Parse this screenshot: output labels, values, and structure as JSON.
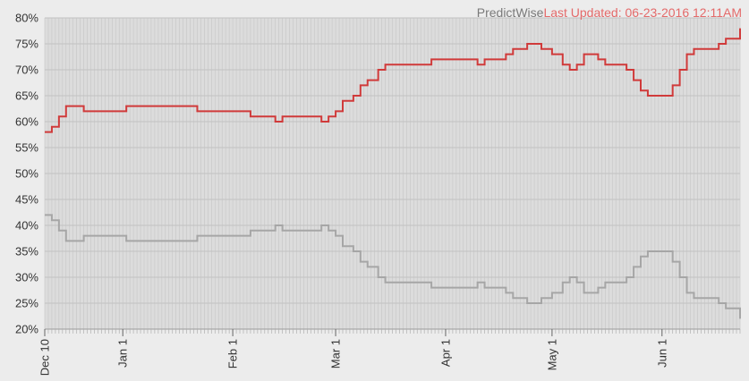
{
  "header": {
    "brand": "PredictWise",
    "updated": "Last Updated: 06-23-2016 12:11AM"
  },
  "colors": {
    "background": "#ececec",
    "plot_background": "#dcdcdc",
    "series_red": "#d03a3a",
    "series_gray": "#a6a6a6"
  },
  "chart_data": {
    "type": "line",
    "title": "",
    "xlabel": "",
    "ylabel": "",
    "x_range": [
      "2015-12-10",
      "2016-06-23"
    ],
    "ylim": [
      20,
      80
    ],
    "y_ticks": [
      20,
      25,
      30,
      35,
      40,
      45,
      50,
      55,
      60,
      65,
      70,
      75,
      80
    ],
    "y_tick_labels": [
      "20%",
      "25%",
      "30%",
      "35%",
      "40%",
      "45%",
      "50%",
      "55%",
      "60%",
      "65%",
      "70%",
      "75%",
      "80%"
    ],
    "x_ticks": [
      "2015-12-10",
      "2016-01-01",
      "2016-02-01",
      "2016-03-01",
      "2016-04-01",
      "2016-05-01",
      "2016-06-01"
    ],
    "x_tick_labels": [
      "Dec 10",
      "Jan 1",
      "Feb 1",
      "Mar 1",
      "Apr 1",
      "May 1",
      "Jun 1"
    ],
    "grid": true,
    "legend": "none",
    "series": [
      {
        "points": [
          [
            "2015-12-10",
            58
          ],
          [
            "2015-12-12",
            59
          ],
          [
            "2015-12-14",
            61
          ],
          [
            "2015-12-16",
            63
          ],
          [
            "2015-12-20",
            63
          ],
          [
            "2015-12-21",
            62
          ],
          [
            "2015-12-25",
            62
          ],
          [
            "2015-12-31",
            62
          ],
          [
            "2016-01-02",
            63
          ],
          [
            "2016-01-10",
            63
          ],
          [
            "2016-01-14",
            63
          ],
          [
            "2016-01-18",
            63
          ],
          [
            "2016-01-20",
            63
          ],
          [
            "2016-01-22",
            62
          ],
          [
            "2016-01-28",
            62
          ],
          [
            "2016-02-02",
            62
          ],
          [
            "2016-02-06",
            61
          ],
          [
            "2016-02-10",
            61
          ],
          [
            "2016-02-13",
            60
          ],
          [
            "2016-02-15",
            61
          ],
          [
            "2016-02-22",
            61
          ],
          [
            "2016-02-26",
            60
          ],
          [
            "2016-02-28",
            61
          ],
          [
            "2016-03-01",
            62
          ],
          [
            "2016-03-03",
            64
          ],
          [
            "2016-03-06",
            65
          ],
          [
            "2016-03-08",
            67
          ],
          [
            "2016-03-10",
            68
          ],
          [
            "2016-03-13",
            70
          ],
          [
            "2016-03-15",
            71
          ],
          [
            "2016-03-18",
            71
          ],
          [
            "2016-03-25",
            71
          ],
          [
            "2016-03-28",
            72
          ],
          [
            "2016-04-05",
            72
          ],
          [
            "2016-04-10",
            71
          ],
          [
            "2016-04-12",
            72
          ],
          [
            "2016-04-16",
            72
          ],
          [
            "2016-04-18",
            73
          ],
          [
            "2016-04-20",
            74
          ],
          [
            "2016-04-24",
            75
          ],
          [
            "2016-04-28",
            74
          ],
          [
            "2016-05-01",
            73
          ],
          [
            "2016-05-04",
            71
          ],
          [
            "2016-05-06",
            70
          ],
          [
            "2016-05-08",
            71
          ],
          [
            "2016-05-10",
            73
          ],
          [
            "2016-05-14",
            72
          ],
          [
            "2016-05-16",
            71
          ],
          [
            "2016-05-22",
            70
          ],
          [
            "2016-05-24",
            68
          ],
          [
            "2016-05-26",
            66
          ],
          [
            "2016-05-28",
            65
          ],
          [
            "2016-06-02",
            65
          ],
          [
            "2016-06-04",
            67
          ],
          [
            "2016-06-06",
            70
          ],
          [
            "2016-06-08",
            73
          ],
          [
            "2016-06-10",
            74
          ],
          [
            "2016-06-14",
            74
          ],
          [
            "2016-06-17",
            75
          ],
          [
            "2016-06-19",
            76
          ],
          [
            "2016-06-22",
            76
          ],
          [
            "2016-06-23",
            78
          ]
        ]
      },
      {
        "points": [
          [
            "2015-12-10",
            42
          ],
          [
            "2015-12-12",
            41
          ],
          [
            "2015-12-14",
            39
          ],
          [
            "2015-12-16",
            37
          ],
          [
            "2015-12-20",
            37
          ],
          [
            "2015-12-21",
            38
          ],
          [
            "2015-12-25",
            38
          ],
          [
            "2015-12-31",
            38
          ],
          [
            "2016-01-02",
            37
          ],
          [
            "2016-01-10",
            37
          ],
          [
            "2016-01-14",
            37
          ],
          [
            "2016-01-18",
            37
          ],
          [
            "2016-01-20",
            37
          ],
          [
            "2016-01-22",
            38
          ],
          [
            "2016-01-28",
            38
          ],
          [
            "2016-02-02",
            38
          ],
          [
            "2016-02-06",
            39
          ],
          [
            "2016-02-10",
            39
          ],
          [
            "2016-02-13",
            40
          ],
          [
            "2016-02-15",
            39
          ],
          [
            "2016-02-22",
            39
          ],
          [
            "2016-02-26",
            40
          ],
          [
            "2016-02-28",
            39
          ],
          [
            "2016-03-01",
            38
          ],
          [
            "2016-03-03",
            36
          ],
          [
            "2016-03-06",
            35
          ],
          [
            "2016-03-08",
            33
          ],
          [
            "2016-03-10",
            32
          ],
          [
            "2016-03-13",
            30
          ],
          [
            "2016-03-15",
            29
          ],
          [
            "2016-03-18",
            29
          ],
          [
            "2016-03-25",
            29
          ],
          [
            "2016-03-28",
            28
          ],
          [
            "2016-04-05",
            28
          ],
          [
            "2016-04-10",
            29
          ],
          [
            "2016-04-12",
            28
          ],
          [
            "2016-04-16",
            28
          ],
          [
            "2016-04-18",
            27
          ],
          [
            "2016-04-20",
            26
          ],
          [
            "2016-04-24",
            25
          ],
          [
            "2016-04-28",
            26
          ],
          [
            "2016-05-01",
            27
          ],
          [
            "2016-05-04",
            29
          ],
          [
            "2016-05-06",
            30
          ],
          [
            "2016-05-08",
            29
          ],
          [
            "2016-05-10",
            27
          ],
          [
            "2016-05-14",
            28
          ],
          [
            "2016-05-16",
            29
          ],
          [
            "2016-05-22",
            30
          ],
          [
            "2016-05-24",
            32
          ],
          [
            "2016-05-26",
            34
          ],
          [
            "2016-05-28",
            35
          ],
          [
            "2016-06-02",
            35
          ],
          [
            "2016-06-04",
            33
          ],
          [
            "2016-06-06",
            30
          ],
          [
            "2016-06-08",
            27
          ],
          [
            "2016-06-10",
            26
          ],
          [
            "2016-06-14",
            26
          ],
          [
            "2016-06-17",
            25
          ],
          [
            "2016-06-19",
            24
          ],
          [
            "2016-06-22",
            24
          ],
          [
            "2016-06-23",
            22
          ]
        ]
      }
    ]
  }
}
